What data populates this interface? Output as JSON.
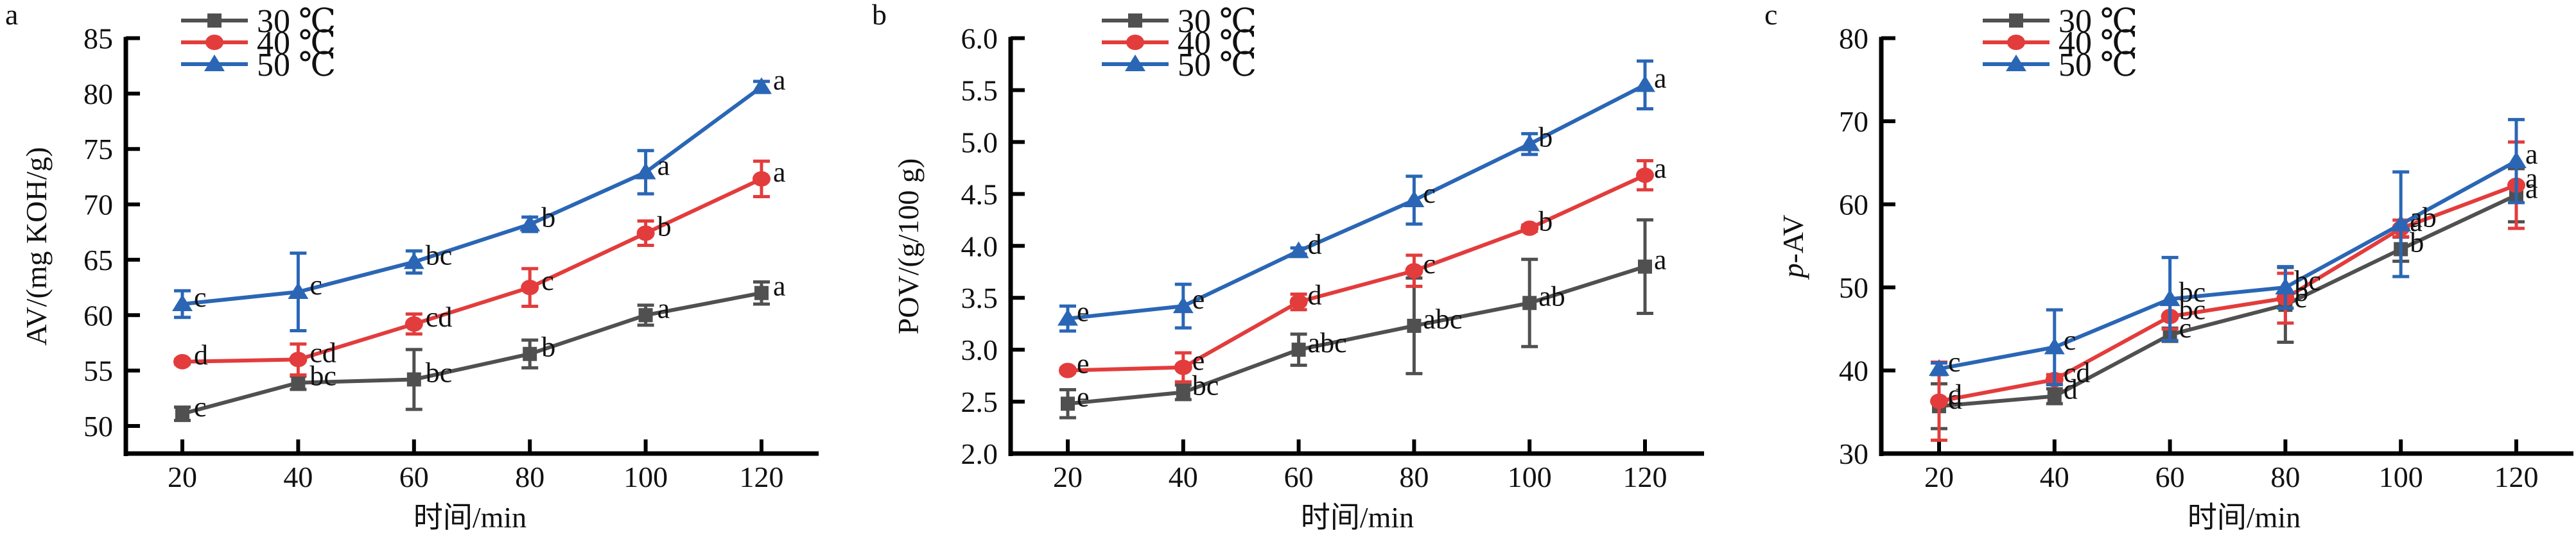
{
  "figure": {
    "series_styles": [
      {
        "name": "30 ℃",
        "color": "#505050",
        "marker": "square"
      },
      {
        "name": "40 ℃",
        "color": "#e33c3c",
        "marker": "circle"
      },
      {
        "name": "50 ℃",
        "color": "#2a66b5",
        "marker": "triangle"
      }
    ]
  },
  "chart_data": [
    {
      "type": "line",
      "panel_label": "a",
      "title": "",
      "xlabel": "时间/min",
      "ylabel": "AV/(mg KOH/g)",
      "ylabel_italic_prefix": "",
      "x": [
        20,
        40,
        60,
        80,
        100,
        120
      ],
      "x_ticks": [
        "20",
        "40",
        "60",
        "80",
        "100",
        "120"
      ],
      "y_ticks": [
        "50",
        "55",
        "60",
        "65",
        "70",
        "75",
        "80",
        "85"
      ],
      "y_tick_values": [
        50,
        55,
        60,
        65,
        70,
        75,
        80,
        85
      ],
      "ylim": [
        47.5,
        85
      ],
      "xlim": [
        10.7,
        129.9
      ],
      "grid": false,
      "legend": {
        "placement": "top-left",
        "entries": [
          "30 ℃",
          "40 ℃",
          "50 ℃"
        ]
      },
      "series": [
        {
          "name": "30 ℃",
          "values": [
            51.1,
            53.9,
            54.2,
            56.5,
            60.0,
            62.0
          ],
          "errors": [
            0.6,
            0.6,
            2.7,
            1.25,
            0.9,
            1.0
          ],
          "labels": [
            "c",
            "bc",
            "bc",
            "b",
            "a",
            "a"
          ]
        },
        {
          "name": "40 ℃",
          "values": [
            55.8,
            56.0,
            59.2,
            62.5,
            67.4,
            72.3
          ],
          "errors": [
            0.2,
            1.4,
            0.9,
            1.7,
            1.1,
            1.6
          ],
          "labels": [
            "d",
            "cd",
            "cd",
            "c",
            "b",
            "a"
          ]
        },
        {
          "name": "50 ℃",
          "values": [
            61.0,
            62.1,
            64.8,
            68.2,
            72.9,
            80.6
          ],
          "errors": [
            1.2,
            3.5,
            1.0,
            0.65,
            1.95,
            0.5
          ],
          "labels": [
            "c",
            "c",
            "bc",
            "b",
            "a",
            "a"
          ]
        }
      ]
    },
    {
      "type": "line",
      "panel_label": "b",
      "title": "",
      "xlabel": "时间/min",
      "ylabel": "POV/(g/100 g)",
      "ylabel_italic_prefix": "",
      "x": [
        20,
        40,
        60,
        80,
        100,
        120
      ],
      "x_ticks": [
        "20",
        "40",
        "60",
        "80",
        "100",
        "120"
      ],
      "y_ticks": [
        "2.0",
        "2.5",
        "3.0",
        "3.5",
        "4.0",
        "4.5",
        "5.0",
        "5.5",
        "6.0"
      ],
      "y_tick_values": [
        2.0,
        2.5,
        3.0,
        3.5,
        4.0,
        4.5,
        5.0,
        5.5,
        6.0
      ],
      "ylim": [
        2.0,
        6.0
      ],
      "xlim": [
        14.8,
        140.2
      ],
      "grid": false,
      "legend": {
        "placement": "top-left",
        "entries": [
          "30 ℃",
          "40 ℃",
          "50 ℃"
        ]
      },
      "series": [
        {
          "name": "30 ℃",
          "values": [
            2.48,
            2.59,
            3.0,
            3.23,
            3.45,
            3.8
          ],
          "errors": [
            0.135,
            0.07,
            0.15,
            0.46,
            0.42,
            0.45
          ],
          "labels": [
            "e",
            "bc",
            "abc",
            "abc",
            "ab",
            "a"
          ]
        },
        {
          "name": "40 ℃",
          "values": [
            2.8,
            2.83,
            3.46,
            3.76,
            4.17,
            4.68
          ],
          "errors": [
            0.02,
            0.14,
            0.075,
            0.15,
            0.03,
            0.14
          ],
          "labels": [
            "e",
            "e",
            "d",
            "c",
            "b",
            "a"
          ]
        },
        {
          "name": "50 ℃",
          "values": [
            3.3,
            3.42,
            3.95,
            4.44,
            4.98,
            5.55
          ],
          "errors": [
            0.12,
            0.21,
            0.03,
            0.23,
            0.1,
            0.23
          ],
          "labels": [
            "e",
            "e",
            "d",
            "c",
            "b",
            "a"
          ]
        }
      ]
    },
    {
      "type": "line",
      "panel_label": "c",
      "title": "",
      "xlabel": "时间/min",
      "ylabel": "-AV",
      "ylabel_italic_prefix": "p",
      "x": [
        20,
        40,
        60,
        80,
        100,
        120
      ],
      "x_ticks": [
        "20",
        "40",
        "60",
        "80",
        "100",
        "120"
      ],
      "y_ticks": [
        "30",
        "40",
        "50",
        "60",
        "70",
        "80"
      ],
      "y_tick_values": [
        30,
        40,
        50,
        60,
        70,
        80
      ],
      "ylim": [
        30,
        80
      ],
      "xlim": [
        10.0,
        129.0
      ],
      "grid": false,
      "legend": {
        "placement": "top-left",
        "entries": [
          "30 ℃",
          "40 ℃",
          "50 ℃"
        ]
      },
      "series": [
        {
          "name": "30 ℃",
          "values": [
            35.7,
            36.9,
            44.3,
            47.9,
            54.6,
            61.1
          ],
          "errors": [
            2.7,
            0.9,
            0.8,
            4.5,
            1.45,
            3.2
          ],
          "labels": [
            "d",
            "d",
            "c",
            "c",
            "b",
            "a"
          ]
        },
        {
          "name": "40 ℃",
          "values": [
            36.3,
            38.9,
            46.5,
            48.7,
            57.1,
            62.3
          ],
          "errors": [
            4.7,
            0.6,
            1.5,
            3.0,
            1.0,
            5.2
          ],
          "labels": [
            "d",
            "cd",
            "bc",
            "b",
            "a",
            "a"
          ]
        },
        {
          "name": "50 ℃",
          "values": [
            40.2,
            42.8,
            48.6,
            50.0,
            57.6,
            65.2
          ],
          "errors": [
            0.7,
            4.5,
            5.0,
            2.5,
            6.3,
            5.0
          ],
          "labels": [
            "c",
            "c",
            "bc",
            "bc",
            "ab",
            "a"
          ]
        }
      ]
    }
  ]
}
